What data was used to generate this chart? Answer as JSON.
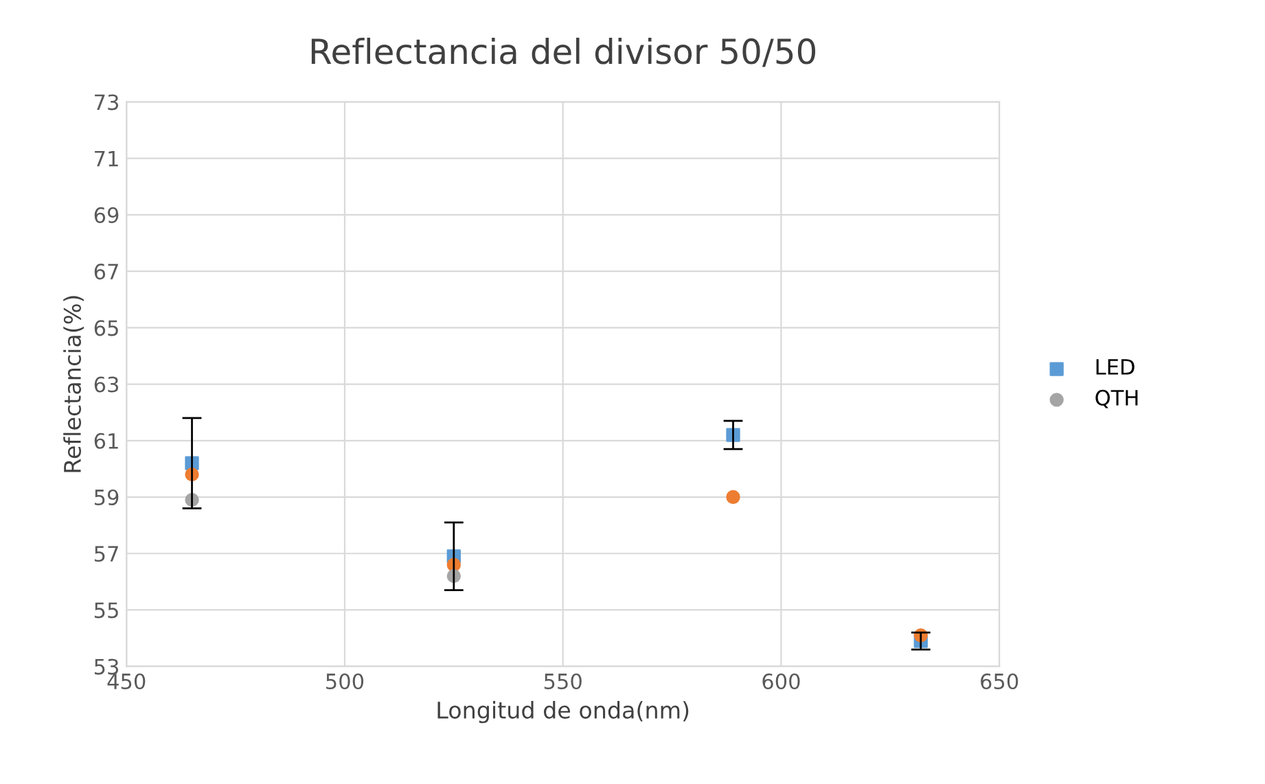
{
  "chart_data": {
    "type": "scatter",
    "title": "Reflectancia del divisor 50/50",
    "xlabel": "Longitud de onda(nm)",
    "ylabel": "Reflectancia(%)",
    "x": [
      465,
      525,
      589,
      632
    ],
    "series": [
      {
        "name": "LED",
        "color": "#5b9bd5",
        "marker": "square",
        "values": [
          60.2,
          56.9,
          61.2,
          53.9
        ],
        "errors": [
          1.6,
          1.2,
          0.5,
          0.3
        ]
      },
      {
        "color": "#ed7d31",
        "marker": "circle",
        "values": [
          59.8,
          56.6,
          59.0,
          54.1
        ]
      },
      {
        "name": "QTH",
        "color": "#a5a5a5",
        "marker": "circle",
        "values": [
          58.9,
          56.2,
          null,
          null
        ]
      }
    ],
    "xlim": [
      450,
      650
    ],
    "xticks": [
      450,
      500,
      550,
      600,
      650
    ],
    "ylim": [
      53,
      73
    ],
    "yticks": [
      53,
      55,
      57,
      59,
      61,
      63,
      65,
      67,
      69,
      71,
      73
    ],
    "grid": true,
    "legend": "right"
  }
}
